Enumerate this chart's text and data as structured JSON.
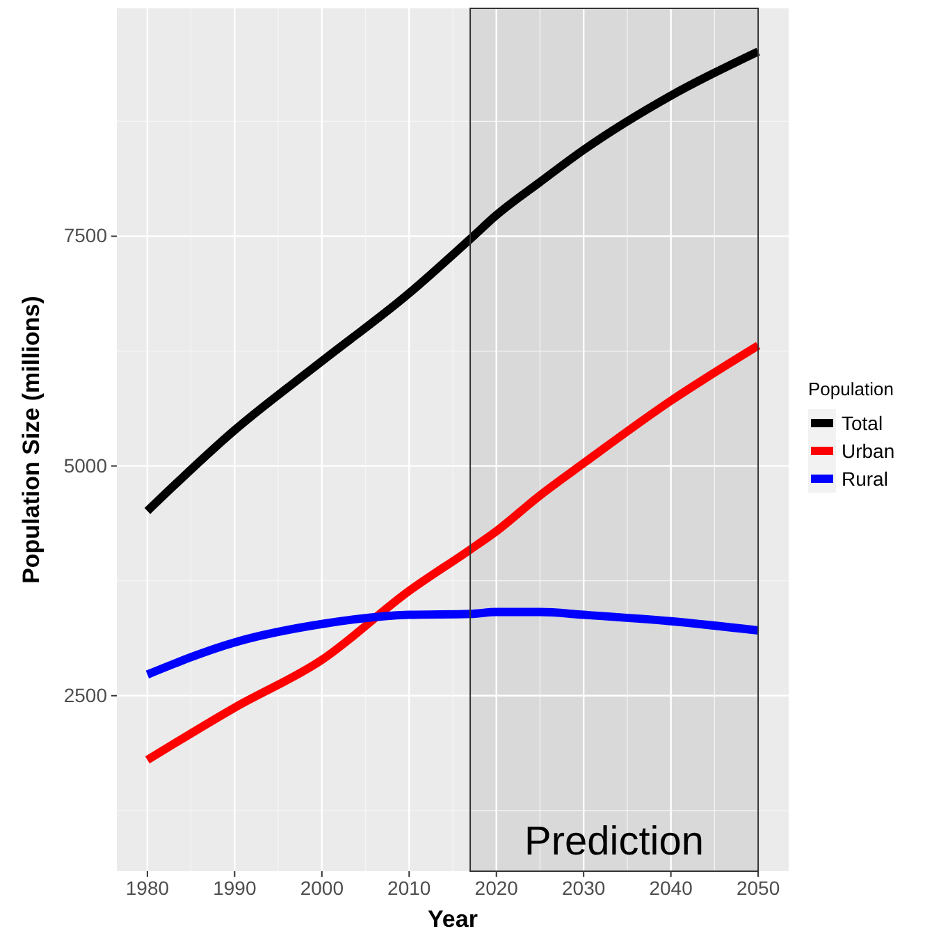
{
  "chart_data": {
    "type": "line",
    "xlabel": "Year",
    "ylabel": "Population Size (millions)",
    "legend_title": "Population",
    "x": [
      1980,
      1990,
      2000,
      2010,
      2017,
      2020,
      2025,
      2030,
      2040,
      2050
    ],
    "series": [
      {
        "name": "Total",
        "color": "#000000",
        "values": [
          4510,
          5390,
          6140,
          6880,
          7470,
          7730,
          8090,
          8440,
          9030,
          9510
        ]
      },
      {
        "name": "Urban",
        "color": "#ff0000",
        "values": [
          1800,
          2370,
          2890,
          3640,
          4090,
          4290,
          4680,
          5030,
          5710,
          6310
        ]
      },
      {
        "name": "Rural",
        "color": "#0000ff",
        "values": [
          2730,
          3080,
          3280,
          3380,
          3390,
          3410,
          3410,
          3380,
          3310,
          3210
        ]
      }
    ],
    "xlim": [
      1976.5,
      2053.5
    ],
    "ylim": [
      590,
      9980
    ],
    "xticks": [
      1980,
      1990,
      2000,
      2010,
      2020,
      2030,
      2040,
      2050
    ],
    "yticks": [
      2500,
      5000,
      7500
    ],
    "bands": [
      {
        "axis": "x",
        "from": 2017,
        "to": 2050,
        "label": "Prediction",
        "color": "#d9d9d9"
      }
    ],
    "grid": true,
    "legend": "right",
    "line_style": "solid",
    "marker": "none"
  }
}
